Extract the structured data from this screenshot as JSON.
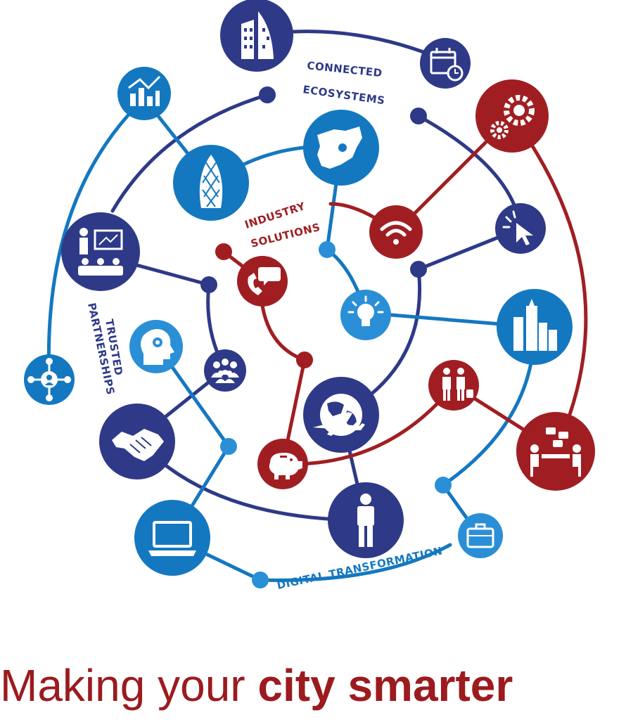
{
  "colors": {
    "navy": "#2e3a87",
    "blue": "#1478c0",
    "light_blue": "#2a8fd6",
    "red": "#a01e22",
    "white": "#ffffff"
  },
  "labels": {
    "connected_1": "CONNECTED",
    "connected_2": "ECOSYSTEMS",
    "industry_1": "INDUSTRY",
    "industry_2": "SOLUTIONS",
    "trusted_1": "TRUSTED",
    "trusted_2": "PARTNERSHIPS",
    "digital": "DIGITAL TRANSFORMATION"
  },
  "tagline": {
    "regular": "Making your",
    "bold": "city smarter"
  },
  "icons": [
    "skyscraper-icon",
    "calendar-clock-icon",
    "bar-chart-icon",
    "gears-icon",
    "gherkin-building-icon",
    "africa-map-icon",
    "wifi-icon",
    "cursor-icon",
    "presentation-icon",
    "phone-chat-icon",
    "lightbulb-icon",
    "city-buildings-icon",
    "head-gear-icon",
    "team-icon",
    "network-person-icon",
    "handshake-icon",
    "globe-plane-icon",
    "meeting-people-icon",
    "traveler-icon",
    "piggy-bank-icon",
    "person-icon",
    "laptop-icon",
    "briefcase-icon"
  ]
}
